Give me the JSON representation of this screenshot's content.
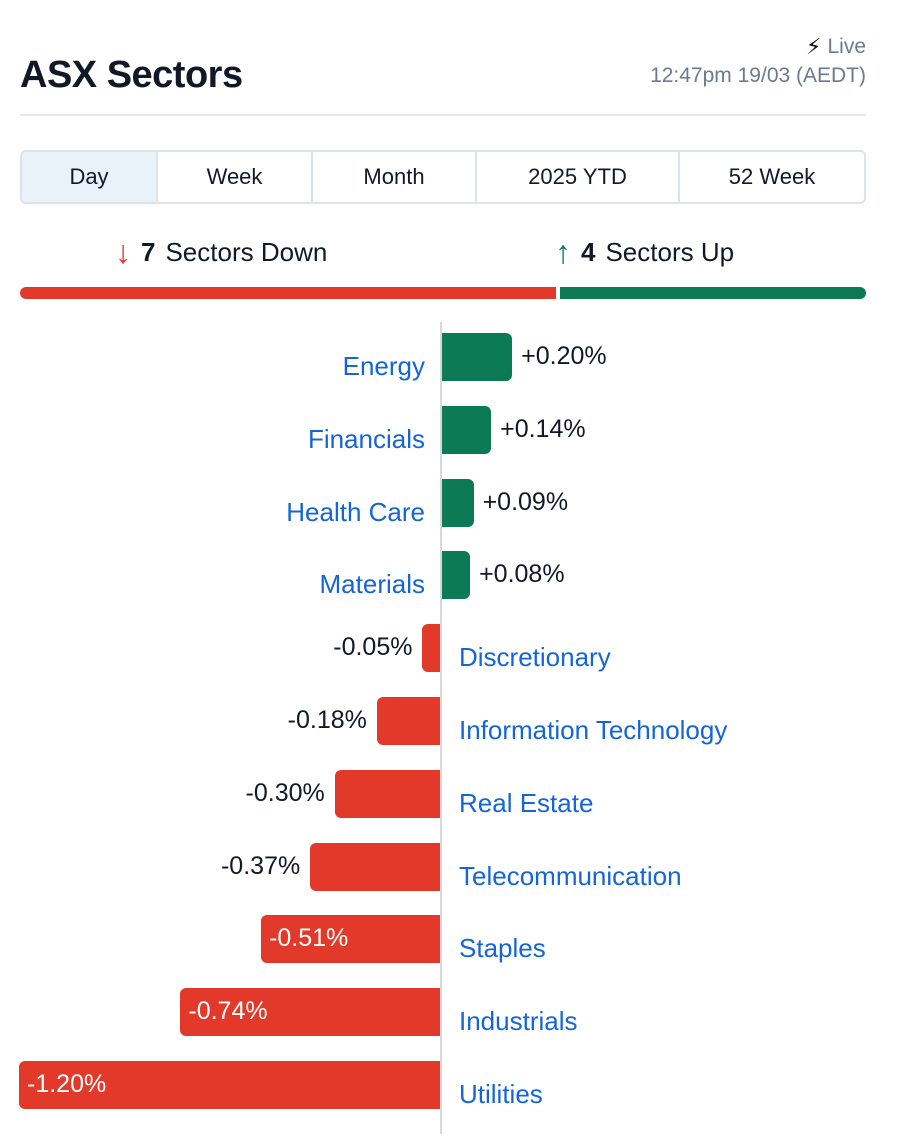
{
  "header": {
    "title": "ASX Sectors",
    "live_label": "Live",
    "timestamp": "12:47pm 19/03 (AEDT)"
  },
  "tabs": [
    {
      "label": "Day",
      "active": true
    },
    {
      "label": "Week",
      "active": false
    },
    {
      "label": "Month",
      "active": false
    },
    {
      "label": "2025 YTD",
      "active": false
    },
    {
      "label": "52 Week",
      "active": false
    }
  ],
  "summary": {
    "down_count": "7",
    "down_label": "Sectors Down",
    "up_count": "4",
    "up_label": "Sectors Up"
  },
  "colors": {
    "positive": "#0b7a55",
    "negative": "#e3392a",
    "link": "#1565d8"
  },
  "chart_data": {
    "type": "bar",
    "orientation": "horizontal",
    "categories": [
      "Energy",
      "Financials",
      "Health Care",
      "Materials",
      "Discretionary",
      "Information Technology",
      "Real Estate",
      "Telecommunication",
      "Staples",
      "Industrials",
      "Utilities"
    ],
    "values": [
      0.2,
      0.14,
      0.09,
      0.08,
      -0.05,
      -0.18,
      -0.3,
      -0.37,
      -0.51,
      -0.74,
      -1.2
    ],
    "value_labels": [
      "+0.20%",
      "+0.14%",
      "+0.09%",
      "+0.08%",
      "-0.05%",
      "-0.18%",
      "-0.30%",
      "-0.37%",
      "-0.51%",
      "-0.74%",
      "-1.20%"
    ],
    "unit": "%"
  }
}
